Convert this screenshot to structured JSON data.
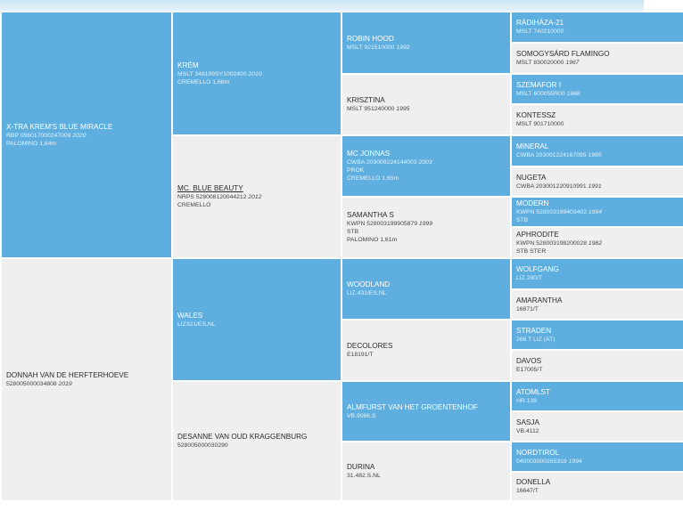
{
  "colors": {
    "blue": "#5eafdf",
    "grey": "#efefef",
    "text_dark": "#2b2b2b",
    "text_light": "#ffffff"
  },
  "pedigree": {
    "subject": {
      "name": "X-TRA KREM'S BLUE MIRACLE",
      "reg": "RBP 056017000247009",
      "year": "2020",
      "color": "PALOMINO 1,64m"
    },
    "sire": {
      "name": "KRÉM",
      "reg": "MSLT 348199SY1002400",
      "year": "2010",
      "color": "CREMELLO 1,68m"
    },
    "dam": {
      "name": "MC. BLUE BEAUTY",
      "reg": "NRPS 528008120044212",
      "year": "2012",
      "color": "CREMELLO"
    },
    "donnah": {
      "name": "DONNAH VAN DE HERFTERHOEVE",
      "reg": "528005000034808",
      "year": "2019"
    },
    "wales": {
      "name": "WALES",
      "reg": "LIZ321/ES,NL"
    },
    "desanne": {
      "name": "DESANNE VAN OUD KRAGGENBURG",
      "reg": "528005000030290"
    },
    "robin_hood": {
      "name": "ROBIN HOOD",
      "reg": "MSLT 921510000",
      "year": "1992"
    },
    "krisztina": {
      "name": "KRISZTINA",
      "reg": "MSLT 951240000",
      "year": "1995"
    },
    "mc_jonnas": {
      "name": "MC JONNAS",
      "reg": "CWBA 203009224144003",
      "year": "2003",
      "line2": "PROK",
      "color": "CREMELLO 1,65m"
    },
    "samantha": {
      "name": "SAMANTHA S",
      "reg": "KWPN 528003199905879",
      "year": "1999",
      "line2": "STB",
      "color": "PALOMINO 1,61m"
    },
    "woodland": {
      "name": "WOODLAND",
      "reg": "LIZ.431/ES,NL"
    },
    "decolores": {
      "name": "DECOLORES",
      "reg": "E18191/T"
    },
    "almfurst": {
      "name": "ALMFURST VAN HET GROENTENHOF",
      "reg": "VB.9086.S"
    },
    "durina": {
      "name": "DURINA",
      "reg": "31.482.S.NL"
    },
    "radihaza": {
      "name": "RÁDIHÁZA-21",
      "reg": "MSLT 740210000"
    },
    "somogysard": {
      "name": "SOMOGYSÁRD FLAMINGO",
      "reg": "MSLT 830020000",
      "year": "1967"
    },
    "szemafor": {
      "name": "SZEMAFOR I",
      "reg": "MSLT 600055R00",
      "year": "1988"
    },
    "kontessz": {
      "name": "KONTESSZ",
      "reg": "MSLT 901710000"
    },
    "mineral": {
      "name": "MINERAL",
      "reg": "CWBA 203001224167095",
      "year": "1995"
    },
    "nugeta": {
      "name": "NUGETA",
      "reg": "CWBA 203001220910991",
      "year": "1991"
    },
    "modern": {
      "name": "MODERN",
      "reg": "KWPN 528003199403402",
      "year": "1994",
      "line2": "STB"
    },
    "aphrodite": {
      "name": "APHRODITE",
      "reg": "KWPN 528003198200028",
      "year": "1982",
      "line2": "STB STER"
    },
    "wolfgang": {
      "name": "WOLFGANG",
      "reg": "LIZ.280/T"
    },
    "amarantha": {
      "name": "AMARANTHA",
      "reg": "16871/T"
    },
    "straden": {
      "name": "STRADEN",
      "reg": "266 T LIZ (AT)"
    },
    "davos": {
      "name": "DAVOS",
      "reg": "E17005/T"
    },
    "atomlst": {
      "name": "ATOMLST",
      "reg": "HR.139"
    },
    "sasja": {
      "name": "SASJA",
      "reg": "VB.4112"
    },
    "nordtirol": {
      "name": "NORDTIROL",
      "reg": "040003000265319",
      "year": "1994"
    },
    "donella": {
      "name": "DONELLA",
      "reg": "16647/T"
    }
  }
}
